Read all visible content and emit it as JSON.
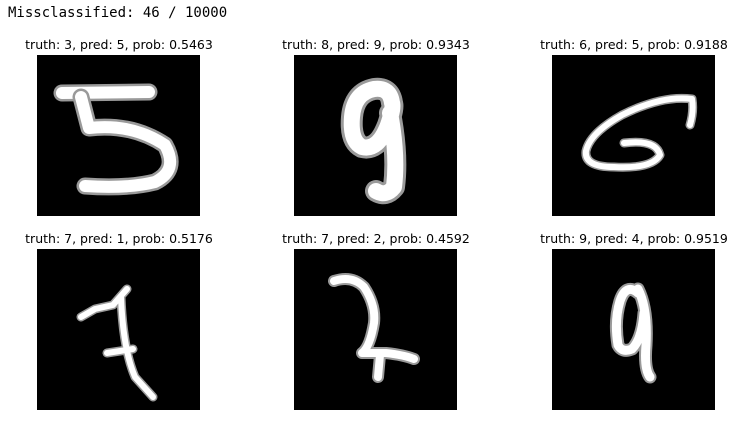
{
  "notebook_output": {
    "text": "Missclassified: 46 / 10000"
  },
  "samples": [
    {
      "title": "truth: 3, pred: 5, prob: 0.5463",
      "truth": 3,
      "pred": 5,
      "prob": 0.5463
    },
    {
      "title": "truth: 8, pred: 9, prob: 0.9343",
      "truth": 8,
      "pred": 9,
      "prob": 0.9343
    },
    {
      "title": "truth: 6, pred: 5, prob: 0.9188",
      "truth": 6,
      "pred": 5,
      "prob": 0.9188
    },
    {
      "title": "truth: 7, pred: 1, prob: 0.5176",
      "truth": 7,
      "pred": 1,
      "prob": 0.5176
    },
    {
      "title": "truth: 7, pred: 2, prob: 0.4592",
      "truth": 7,
      "pred": 2,
      "prob": 0.4592
    },
    {
      "title": "truth: 9, pred: 4, prob: 0.9519",
      "truth": 9,
      "pred": 4,
      "prob": 0.9519
    }
  ]
}
